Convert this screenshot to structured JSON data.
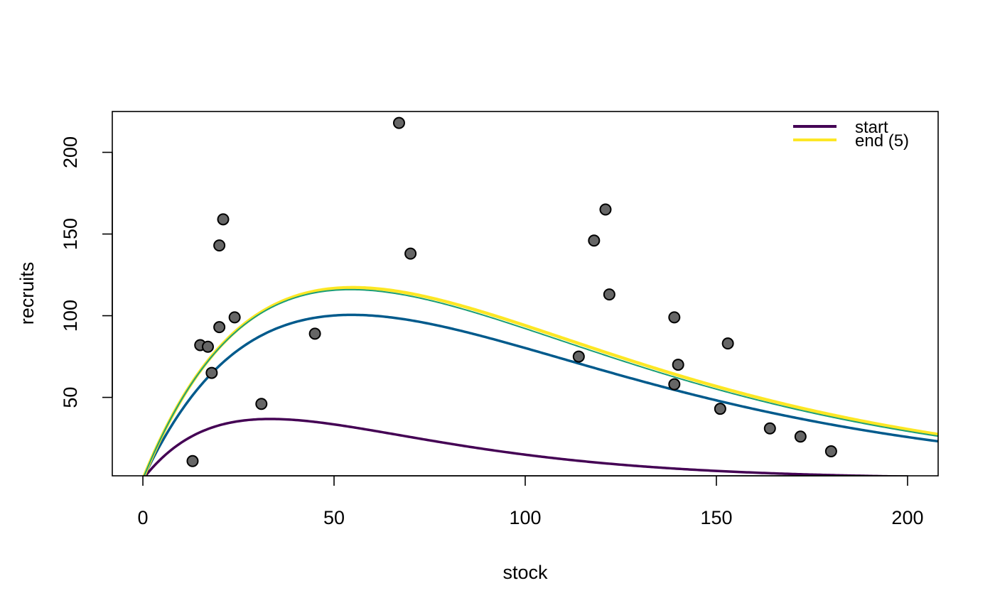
{
  "chart_data": {
    "type": "scatter",
    "title": "",
    "xlabel": "stock",
    "ylabel": "recruits",
    "xlim": [
      -8,
      208
    ],
    "ylim": [
      2,
      225
    ],
    "x_ticks": [
      0,
      50,
      100,
      150,
      200
    ],
    "y_ticks": [
      50,
      100,
      150,
      200
    ],
    "grid": false,
    "legend": {
      "position": "top-right",
      "entries": [
        {
          "label": "start",
          "color": "#440154"
        },
        {
          "label": "end (5)",
          "color": "#FDE725"
        }
      ]
    },
    "points": {
      "fill": "#666666",
      "stroke": "#000000",
      "x": [
        13,
        15,
        17,
        18,
        20,
        20,
        21,
        24,
        31,
        45,
        67,
        70,
        114,
        118,
        121,
        122,
        139,
        139,
        140,
        151,
        153,
        164,
        172,
        180
      ],
      "y": [
        11,
        82,
        81,
        65,
        93,
        143,
        159,
        99,
        46,
        89,
        218,
        138,
        75,
        146,
        165,
        113,
        99,
        58,
        70,
        43,
        83,
        31,
        26,
        17
      ]
    },
    "series": [
      {
        "type": "line",
        "model": "ricker",
        "a": 3.0,
        "b": 0.03,
        "color": "#440154",
        "width": 3.5
      },
      {
        "type": "line",
        "model": "ricker",
        "a": 5.0,
        "b": 0.0183,
        "color": "#005A8C",
        "width": 3.5
      },
      {
        "type": "line",
        "model": "ricker",
        "a": 5.8,
        "b": 0.0182,
        "color": "#FDE725",
        "width": 4.5
      },
      {
        "type": "line",
        "model": "ricker",
        "a": 5.8,
        "b": 0.0184,
        "color": "#1B9E77",
        "width": 2
      }
    ]
  }
}
